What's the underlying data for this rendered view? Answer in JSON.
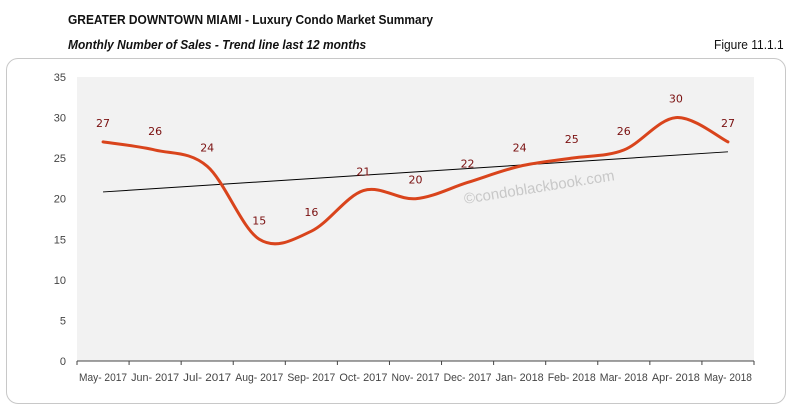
{
  "header": {
    "title": "GREATER DOWNTOWN MIAMI - Luxury Condo Market Summary",
    "subtitle": "Monthly Number of Sales - Trend line last 12 months",
    "figure": "Figure 11.1.1"
  },
  "watermark": "©condoblackbook.com",
  "chart_data": {
    "type": "line",
    "categories": [
      "May- 2017",
      "Jun- 2017",
      "Jul- 2017",
      "Aug- 2017",
      "Sep- 2017",
      "Oct- 2017",
      "Nov- 2017",
      "Dec- 2017",
      "Jan- 2018",
      "Feb- 2018",
      "Mar- 2018",
      "Apr- 2018",
      "May- 2018"
    ],
    "series": [
      {
        "values": [
          27,
          26,
          24,
          15,
          16,
          21,
          20,
          22,
          24,
          25,
          26,
          30,
          27
        ],
        "color": "#d9441c",
        "smooth": true,
        "data_labels": true
      }
    ],
    "trendline": {
      "type": "linear",
      "color": "#000000"
    },
    "ylim": [
      0,
      35
    ],
    "yticks": [
      0,
      5,
      10,
      15,
      20,
      25,
      30,
      35
    ],
    "plot_background": "#f2f2f2",
    "label_color": "#7a1010",
    "grid": false
  }
}
